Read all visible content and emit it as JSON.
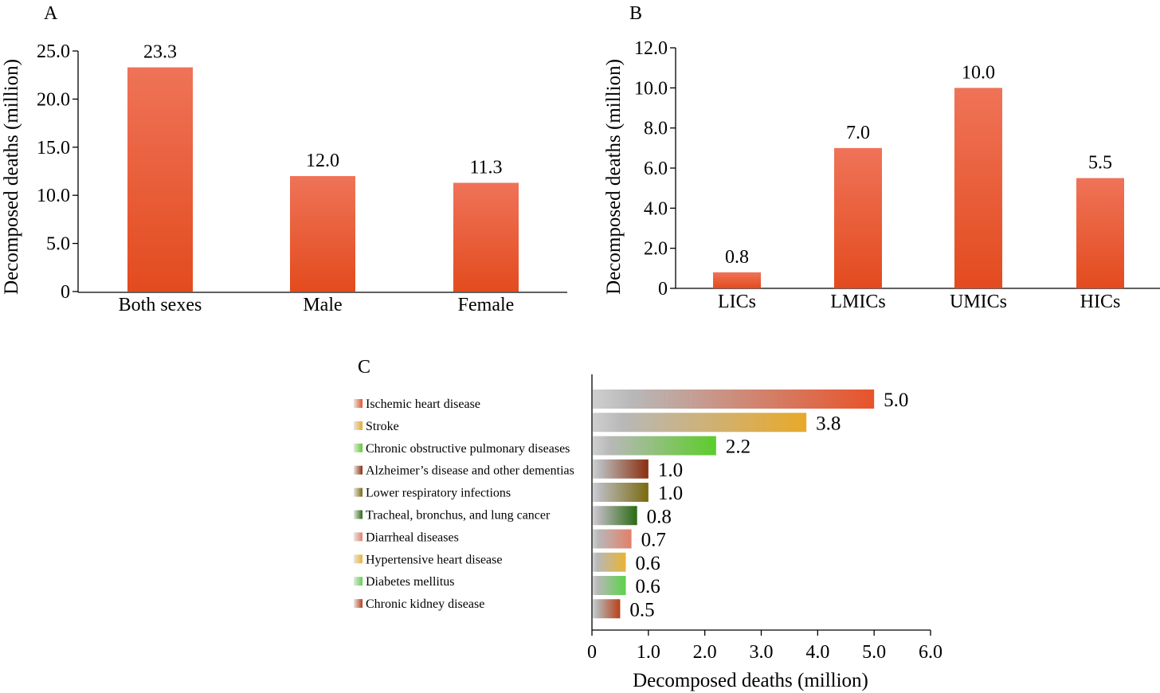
{
  "chart_data": [
    {
      "panel": "A",
      "type": "bar",
      "ylabel": "Decomposed deaths (million)",
      "categories": [
        "Both sexes",
        "Male",
        "Female"
      ],
      "values": [
        23.3,
        12.0,
        11.3
      ],
      "value_labels": [
        "23.3",
        "12.0",
        "11.3"
      ],
      "ylim": [
        0,
        25
      ],
      "yticks": [
        0,
        5,
        10,
        15,
        20,
        25
      ],
      "ytick_labels": [
        "0",
        "5.0",
        "10.0",
        "15.0",
        "20.0",
        "25.0"
      ],
      "bar_color_top": "#ef7358",
      "bar_color_bottom": "#e34b1e"
    },
    {
      "panel": "B",
      "type": "bar",
      "ylabel": "Decomposed deaths (million)",
      "categories": [
        "LICs",
        "LMICs",
        "UMICs",
        "HICs"
      ],
      "values": [
        0.8,
        7.0,
        10.0,
        5.5
      ],
      "value_labels": [
        "0.8",
        "7.0",
        "10.0",
        "5.5"
      ],
      "ylim": [
        0,
        12
      ],
      "yticks": [
        0,
        2,
        4,
        6,
        8,
        10,
        12
      ],
      "ytick_labels": [
        "0",
        "2.0",
        "4.0",
        "6.0",
        "8.0",
        "10.0",
        "12.0"
      ],
      "bar_color_top": "#ef7358",
      "bar_color_bottom": "#e34b1e"
    },
    {
      "panel": "C",
      "type": "bar",
      "orientation": "horizontal",
      "xlabel": "Decomposed deaths (million)",
      "categories": [
        "Ischemic heart disease",
        "Stroke",
        "Chronic obstructive pulmonary diseases",
        "Alzheimer’s disease and other dementias",
        "Lower respiratory infections",
        "Tracheal, bronchus, and lung cancer",
        "Diarrheal diseases",
        "Hypertensive heart disease",
        "Diabetes mellitus",
        "Chronic kidney disease"
      ],
      "values": [
        5.0,
        3.8,
        2.2,
        1.0,
        1.0,
        0.8,
        0.7,
        0.6,
        0.6,
        0.5
      ],
      "value_labels": [
        "5.0",
        "3.8",
        "2.2",
        "1.0",
        "1.0",
        "0.8",
        "0.7",
        "0.6",
        "0.6",
        "0.5"
      ],
      "colors": [
        "#e8532a",
        "#e8a92a",
        "#5ccc2a",
        "#8a2e0e",
        "#7a6a0e",
        "#2a6a12",
        "#e2806a",
        "#e8b432",
        "#5cd24a",
        "#b8401a"
      ],
      "legend_placement": "left",
      "xlim": [
        0,
        6
      ],
      "xticks": [
        0,
        1,
        2,
        3,
        4,
        5,
        6
      ],
      "xtick_labels": [
        "0",
        "1.0",
        "2.0",
        "3.0",
        "4.0",
        "5.0",
        "6.0"
      ]
    }
  ]
}
